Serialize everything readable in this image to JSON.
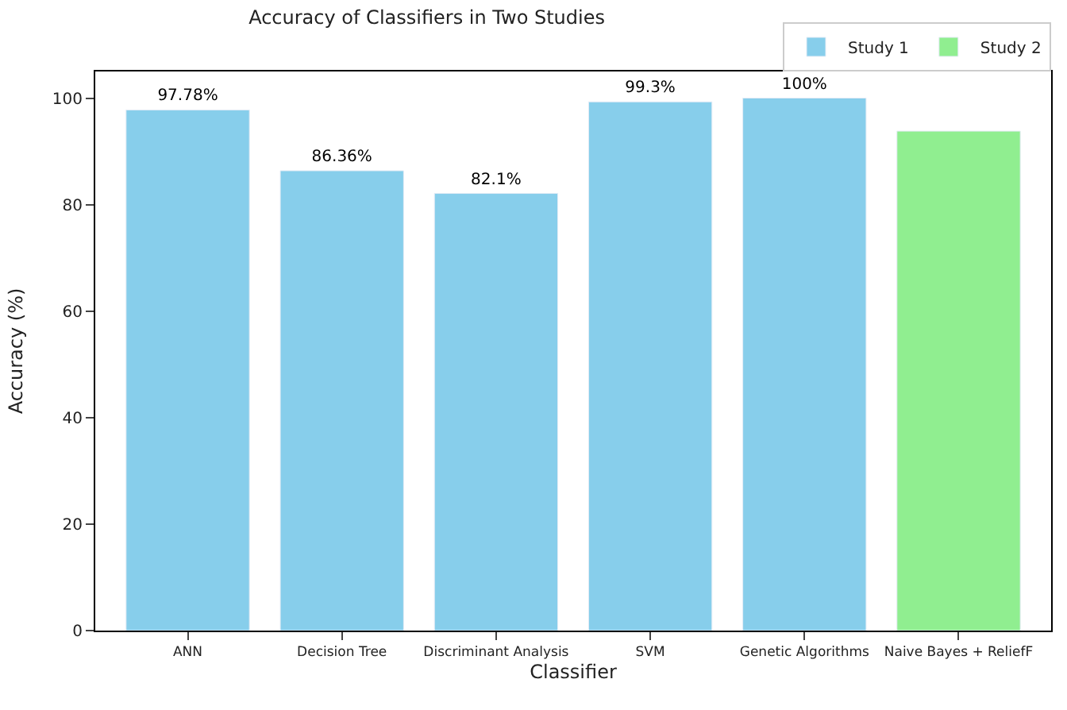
{
  "chart_data": {
    "type": "bar",
    "title": "Accuracy of Classifiers in Two Studies",
    "xlabel": "Classifier",
    "ylabel": "Accuracy (%)",
    "categories": [
      "ANN",
      "Decision Tree",
      "Discriminant Analysis",
      "SVM",
      "Genetic Algorithms",
      "Naive Bayes + ReliefF"
    ],
    "series": [
      {
        "name": "Study 1",
        "color": "#87ceeb",
        "values": [
          97.78,
          86.36,
          82.1,
          99.3,
          100,
          null
        ],
        "value_labels": [
          "97.78%",
          "86.36%",
          "82.1%",
          "99.3%",
          "100%",
          null
        ]
      },
      {
        "name": "Study 2",
        "color": "#90ee90",
        "values": [
          null,
          null,
          null,
          null,
          null,
          93.8
        ],
        "value_labels": [
          null,
          null,
          null,
          null,
          null,
          null
        ]
      }
    ],
    "ylim": [
      0,
      105
    ],
    "yticks": [
      0,
      20,
      40,
      60,
      80,
      100
    ],
    "legend": "top right"
  }
}
